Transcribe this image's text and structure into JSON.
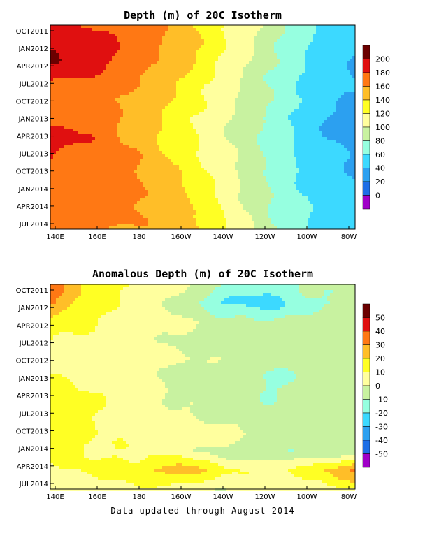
{
  "chart_data": [
    {
      "type": "heatmap",
      "title": "Depth (m) of 20C Isotherm",
      "x_ticks": [
        "140E",
        "160E",
        "180",
        "160W",
        "140W",
        "120W",
        "100W",
        "80W"
      ],
      "y_ticks": [
        "OCT2011",
        "JAN2012",
        "APR2012",
        "JUL2012",
        "OCT2012",
        "JAN2013",
        "APR2013",
        "JUL2013",
        "OCT2013",
        "JAN2014",
        "APR2014",
        "JUL2014"
      ],
      "colorbar": {
        "levels": [
          "200",
          "180",
          "160",
          "140",
          "120",
          "100",
          "80",
          "60",
          "40",
          "20",
          "0"
        ],
        "colors": [
          "#6b0000",
          "#e01010",
          "#ff7814",
          "#ffbe28",
          "#ffff24",
          "#ffff9e",
          "#c8f2a0",
          "#96ffe0",
          "#3cd9ff",
          "#2ca0f0",
          "#1e6ee6",
          "#a000c8"
        ]
      },
      "x": [
        140,
        160,
        180,
        200,
        220,
        240,
        260,
        280
      ],
      "y": [
        "OCT2011",
        "JAN2012",
        "APR2012",
        "JUL2012",
        "OCT2012",
        "JAN2013",
        "APR2013",
        "JUL2013",
        "OCT2013",
        "JAN2014",
        "APR2014",
        "JUL2014"
      ],
      "z": [
        [
          185,
          178,
          170,
          150,
          120,
          95,
          62,
          45
        ],
        [
          198,
          193,
          172,
          152,
          122,
          88,
          58,
          40
        ],
        [
          202,
          192,
          168,
          148,
          118,
          85,
          55,
          38
        ],
        [
          182,
          175,
          160,
          138,
          112,
          78,
          55,
          42
        ],
        [
          170,
          165,
          155,
          133,
          110,
          82,
          52,
          38
        ],
        [
          165,
          168,
          152,
          128,
          105,
          76,
          48,
          28
        ],
        [
          195,
          178,
          150,
          126,
          102,
          74,
          45,
          30
        ],
        [
          180,
          172,
          160,
          130,
          105,
          78,
          50,
          38
        ],
        [
          175,
          170,
          160,
          138,
          110,
          78,
          52,
          40
        ],
        [
          172,
          168,
          165,
          145,
          112,
          80,
          55,
          42
        ],
        [
          175,
          170,
          162,
          148,
          118,
          82,
          58,
          42
        ],
        [
          168,
          162,
          158,
          150,
          125,
          85,
          60,
          45
        ]
      ]
    },
    {
      "type": "heatmap",
      "title": "Anomalous Depth (m) of 20C Isotherm",
      "x_ticks": [
        "140E",
        "160E",
        "180",
        "160W",
        "140W",
        "120W",
        "100W",
        "80W"
      ],
      "y_ticks": [
        "OCT2011",
        "JAN2012",
        "APR2012",
        "JUL2012",
        "OCT2012",
        "JAN2013",
        "APR2013",
        "JUL2013",
        "OCT2013",
        "JAN2014",
        "APR2014",
        "JUL2014"
      ],
      "colorbar": {
        "levels": [
          "50",
          "40",
          "30",
          "20",
          "10",
          "0",
          "-10",
          "-20",
          "-30",
          "-40",
          "-50"
        ],
        "colors": [
          "#6b0000",
          "#e01010",
          "#ff7814",
          "#ffbe28",
          "#ffff24",
          "#ffff9e",
          "#c8f2a0",
          "#96ffe0",
          "#3cd9ff",
          "#2ca0f0",
          "#1e6ee6",
          "#a000c8"
        ]
      },
      "x": [
        140,
        160,
        180,
        200,
        220,
        240,
        260,
        280
      ],
      "y": [
        "OCT2011",
        "JAN2012",
        "APR2012",
        "JUL2012",
        "OCT2012",
        "JAN2013",
        "APR2013",
        "JUL2013",
        "OCT2013",
        "JAN2014",
        "APR2014",
        "JUL2014"
      ],
      "z": [
        [
          35,
          15,
          10,
          5,
          -10,
          -15,
          -8,
          -5
        ],
        [
          32,
          12,
          8,
          -5,
          -22,
          -25,
          -12,
          -8
        ],
        [
          14,
          10,
          8,
          2,
          -5,
          -10,
          -5,
          -2
        ],
        [
          12,
          6,
          4,
          -2,
          -8,
          -5,
          -4,
          -2
        ],
        [
          5,
          8,
          5,
          0,
          0,
          -5,
          -6,
          -4
        ],
        [
          12,
          6,
          2,
          -5,
          -8,
          -12,
          -8,
          -5
        ],
        [
          16,
          10,
          5,
          -2,
          -5,
          -10,
          -8,
          -5
        ],
        [
          14,
          10,
          6,
          2,
          -4,
          -6,
          -6,
          -4
        ],
        [
          16,
          10,
          6,
          5,
          6,
          -2,
          -4,
          -5
        ],
        [
          14,
          10,
          8,
          5,
          -5,
          -10,
          -8,
          -5
        ],
        [
          8,
          12,
          15,
          28,
          12,
          8,
          15,
          32
        ],
        [
          4,
          6,
          8,
          5,
          2,
          5,
          6,
          10
        ]
      ]
    }
  ],
  "footer": "Data updated through August 2014"
}
